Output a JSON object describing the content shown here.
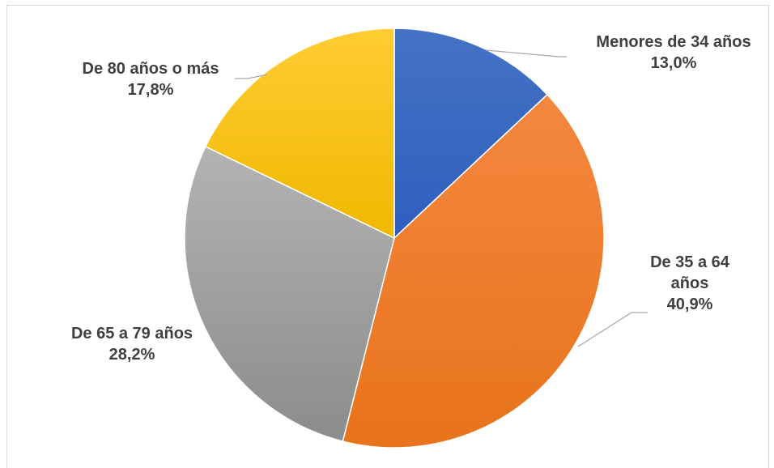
{
  "chart_data": {
    "type": "pie",
    "title": "",
    "start_angle_deg": 0,
    "direction": "clockwise",
    "slices": [
      {
        "label": "Menores de 34 años",
        "value": 13.0,
        "value_label": "13,0%",
        "color": "#4472c4",
        "color_dark": "#2f5fbf"
      },
      {
        "label": "De 35 a 64 años",
        "label_lines": [
          "De 35 a 64",
          "años"
        ],
        "value": 40.9,
        "value_label": "40,9%",
        "color": "#f4873f",
        "color_dark": "#e8731b"
      },
      {
        "label": "De 65 a 79 años",
        "value": 28.2,
        "value_label": "28,2%",
        "color": "#b3b3b3",
        "color_dark": "#8c8c8c"
      },
      {
        "label": "De 80 años o más",
        "value": 17.8,
        "value_label": "17,8%",
        "color": "#ffcc33",
        "color_dark": "#f0b800"
      }
    ]
  }
}
